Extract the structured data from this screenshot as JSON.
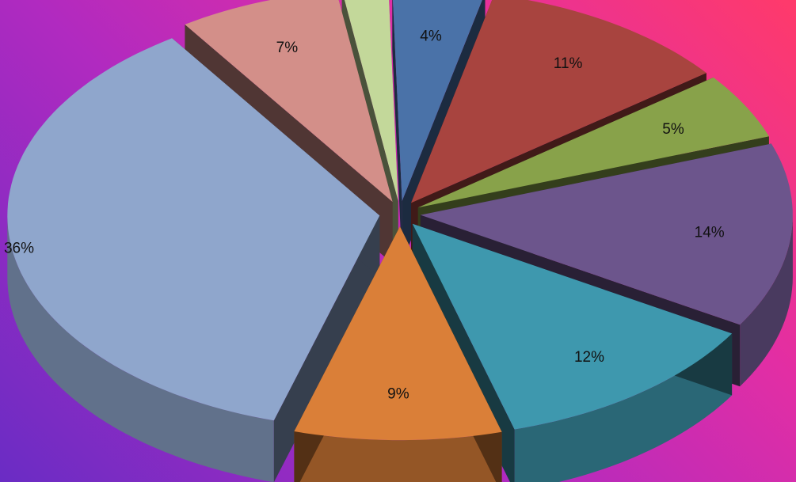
{
  "chart_data": {
    "type": "pie",
    "title": "",
    "three_d": true,
    "exploded": true,
    "background": {
      "from": "#6a2cc4",
      "via": "#c22bb6",
      "to": "#ff3a6a"
    },
    "slices": [
      {
        "label": "4%",
        "value": 4,
        "color": "#4a72a8"
      },
      {
        "label": "11%",
        "value": 11,
        "color": "#a8443f"
      },
      {
        "label": "5%",
        "value": 5,
        "color": "#88a24a"
      },
      {
        "label": "14%",
        "value": 14,
        "color": "#6c558c"
      },
      {
        "label": "12%",
        "value": 12,
        "color": "#3e98ae"
      },
      {
        "label": "9%",
        "value": 9,
        "color": "#da7f38"
      },
      {
        "label": "36%",
        "value": 36,
        "color": "#8fa6cc"
      },
      {
        "label": "7%",
        "value": 7,
        "color": "#d38f89"
      },
      {
        "label": "2%",
        "value": 2,
        "color": "#c3d89a"
      }
    ]
  }
}
